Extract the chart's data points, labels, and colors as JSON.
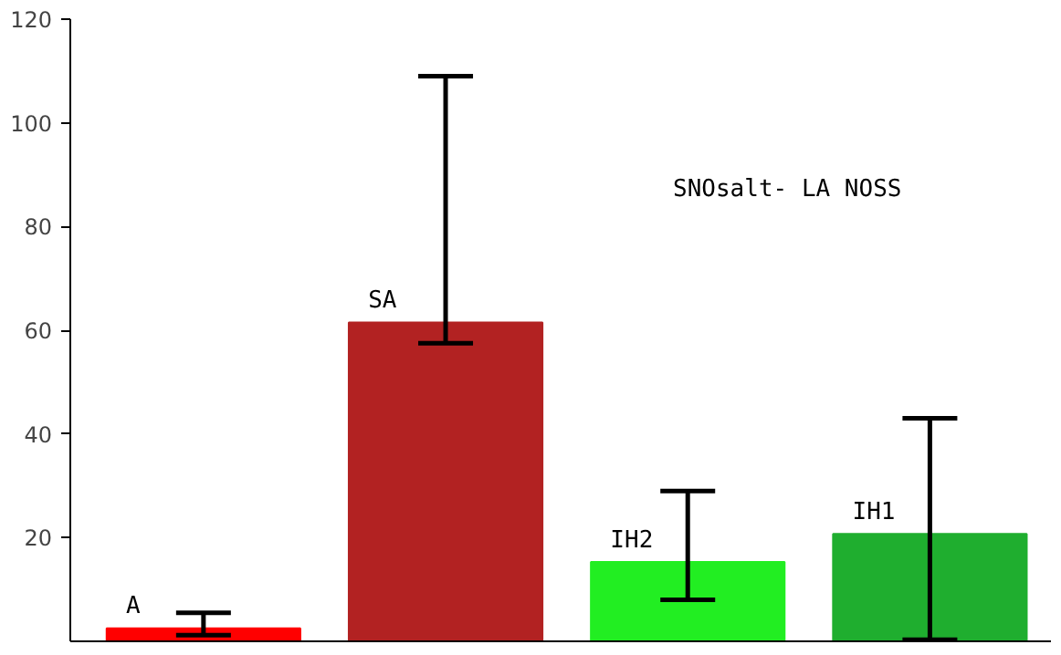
{
  "chart_data": {
    "type": "bar",
    "categories": [
      "A",
      "SA",
      "IH2",
      "IH1"
    ],
    "values": [
      2.5,
      61.5,
      15.3,
      20.7
    ],
    "colors": [
      "#ff0000",
      "#b22222",
      "#22ee22",
      "#1fae2f"
    ],
    "errors": [
      [
        1.2,
        5.5
      ],
      [
        57.5,
        109
      ],
      [
        8,
        29
      ],
      [
        0.3,
        43
      ]
    ],
    "ylim": [
      0,
      120
    ],
    "yticks": [
      20,
      40,
      60,
      80,
      100,
      120
    ],
    "tick_labels": "y",
    "grid": false,
    "annotations": [
      "SNOsalt- LA  NOSS"
    ]
  }
}
